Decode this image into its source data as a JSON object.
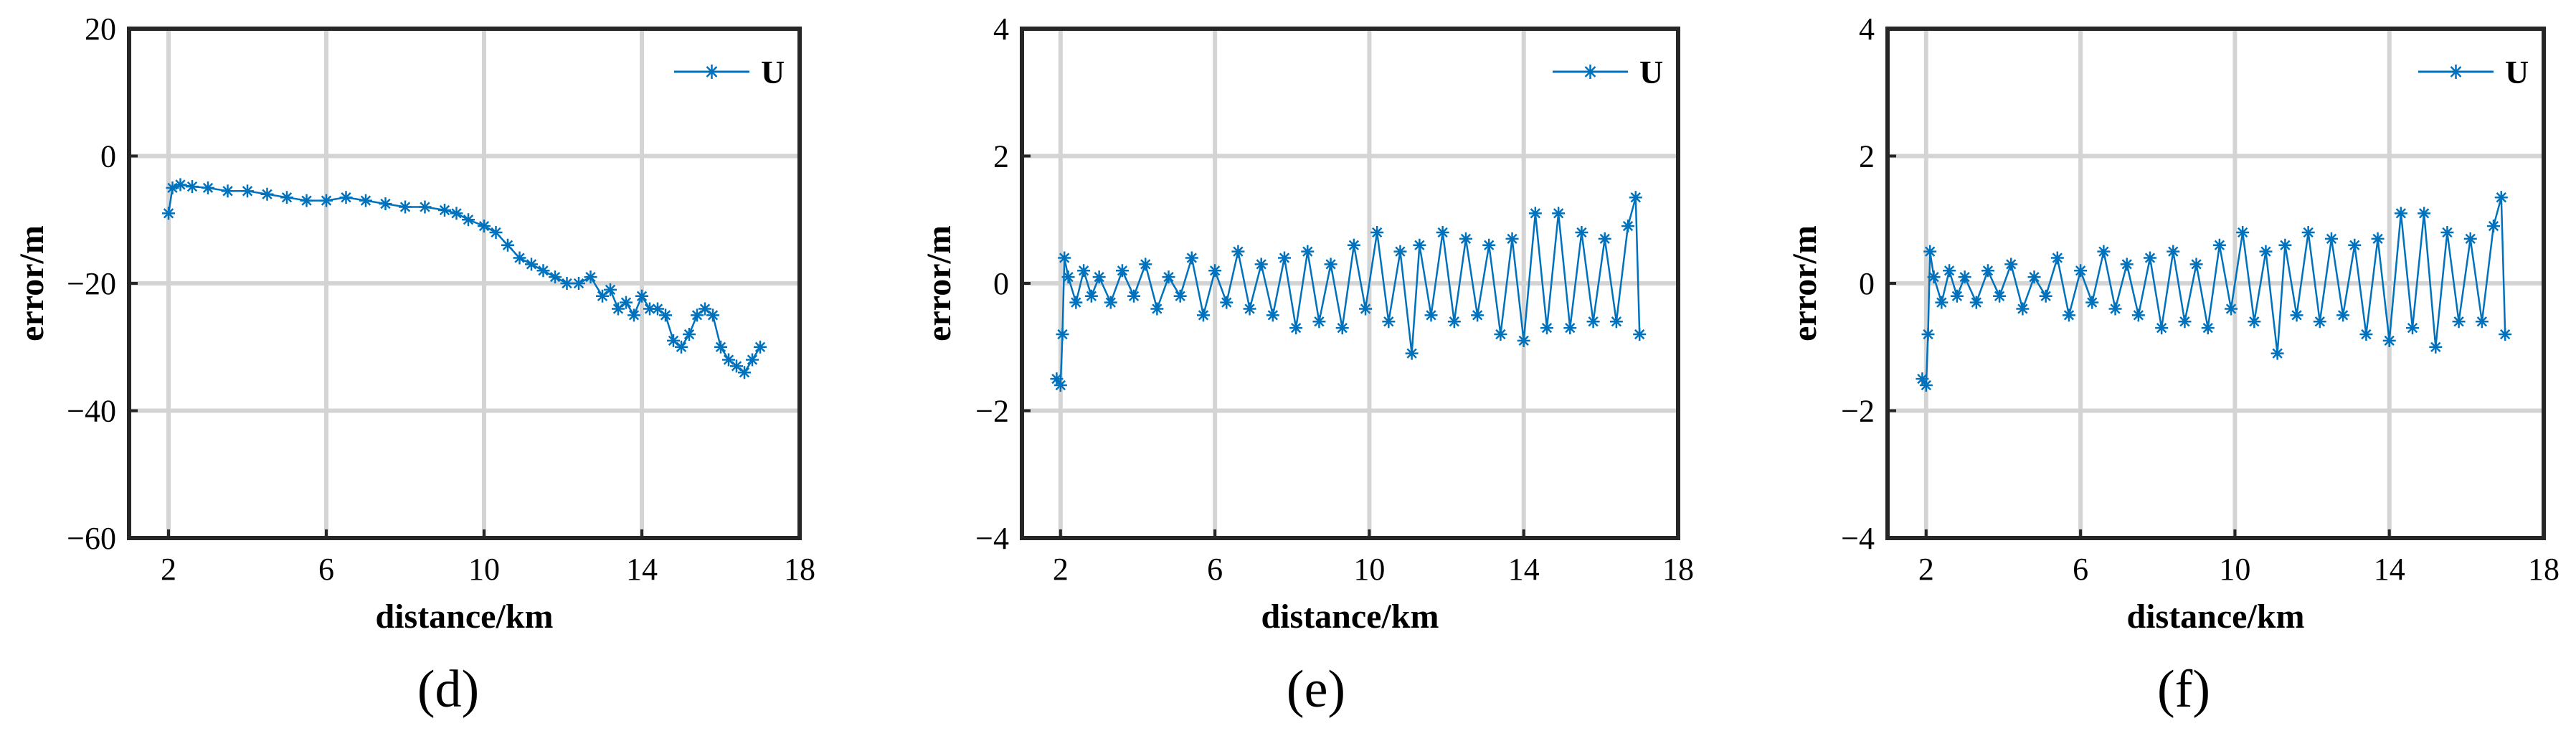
{
  "chart_data": [
    {
      "type": "line",
      "panel_label": "(d)",
      "xlabel": "distance/km",
      "ylabel": "error/m",
      "xlim": [
        1,
        18
      ],
      "ylim": [
        -60,
        20
      ],
      "xticks": [
        2,
        6,
        10,
        14,
        18
      ],
      "yticks": [
        -60,
        -40,
        -20,
        0,
        20
      ],
      "grid": true,
      "legend": "top-right",
      "marker": "asterisk",
      "series": [
        {
          "name": "U",
          "color": "#0072BD",
          "x": [
            2.0,
            2.1,
            2.3,
            2.6,
            3.0,
            3.5,
            4.0,
            4.5,
            5.0,
            5.5,
            6.0,
            6.5,
            7.0,
            7.5,
            8.0,
            8.5,
            9.0,
            9.3,
            9.6,
            10.0,
            10.3,
            10.6,
            10.9,
            11.2,
            11.5,
            11.8,
            12.1,
            12.4,
            12.7,
            13.0,
            13.2,
            13.4,
            13.6,
            13.8,
            14.0,
            14.2,
            14.4,
            14.6,
            14.8,
            15.0,
            15.2,
            15.4,
            15.6,
            15.8,
            16.0,
            16.2,
            16.4,
            16.6,
            16.8,
            17.0
          ],
          "y": [
            -9,
            -5,
            -4.5,
            -4.8,
            -5,
            -5.5,
            -5.5,
            -6,
            -6.5,
            -7,
            -7,
            -6.5,
            -7,
            -7.5,
            -8,
            -8,
            -8.5,
            -9,
            -10,
            -11,
            -12,
            -14,
            -16,
            -17,
            -18,
            -19,
            -20,
            -20,
            -19,
            -22,
            -21,
            -24,
            -23,
            -25,
            -22,
            -24,
            -24,
            -25,
            -29,
            -30,
            -28,
            -25,
            -24,
            -25,
            -30,
            -32,
            -33,
            -34,
            -32,
            -30
          ]
        }
      ]
    },
    {
      "type": "line",
      "panel_label": "(e)",
      "xlabel": "distance/km",
      "ylabel": "error/m",
      "xlim": [
        1,
        18
      ],
      "ylim": [
        -4,
        4
      ],
      "xticks": [
        2,
        6,
        10,
        14,
        18
      ],
      "yticks": [
        -4,
        -2,
        0,
        2,
        4
      ],
      "grid": true,
      "legend": "top-right",
      "marker": "asterisk",
      "series": [
        {
          "name": "U",
          "color": "#0072BD",
          "x": [
            1.9,
            2.0,
            2.05,
            2.1,
            2.2,
            2.4,
            2.6,
            2.8,
            3.0,
            3.3,
            3.6,
            3.9,
            4.2,
            4.5,
            4.8,
            5.1,
            5.4,
            5.7,
            6.0,
            6.3,
            6.6,
            6.9,
            7.2,
            7.5,
            7.8,
            8.1,
            8.4,
            8.7,
            9.0,
            9.3,
            9.6,
            9.9,
            10.2,
            10.5,
            10.8,
            11.1,
            11.3,
            11.6,
            11.9,
            12.2,
            12.5,
            12.8,
            13.1,
            13.4,
            13.7,
            14.0,
            14.3,
            14.6,
            14.9,
            15.2,
            15.5,
            15.8,
            16.1,
            16.4,
            16.7,
            16.9,
            17.0
          ],
          "y": [
            -1.5,
            -1.6,
            -0.8,
            0.4,
            0.1,
            -0.3,
            0.2,
            -0.2,
            0.1,
            -0.3,
            0.2,
            -0.2,
            0.3,
            -0.4,
            0.1,
            -0.2,
            0.4,
            -0.5,
            0.2,
            -0.3,
            0.5,
            -0.4,
            0.3,
            -0.5,
            0.4,
            -0.7,
            0.5,
            -0.6,
            0.3,
            -0.7,
            0.6,
            -0.4,
            0.8,
            -0.6,
            0.5,
            -1.1,
            0.6,
            -0.5,
            0.8,
            -0.6,
            0.7,
            -0.5,
            0.6,
            -0.8,
            0.7,
            -0.9,
            1.1,
            -0.7,
            1.1,
            -0.7,
            0.8,
            -0.6,
            0.7,
            -0.6,
            0.9,
            1.35,
            -0.8
          ]
        }
      ]
    },
    {
      "type": "line",
      "panel_label": "(f)",
      "xlabel": "distance/km",
      "ylabel": "error/m",
      "xlim": [
        1,
        18
      ],
      "ylim": [
        -4,
        4
      ],
      "xticks": [
        2,
        6,
        10,
        14,
        18
      ],
      "yticks": [
        -4,
        -2,
        0,
        2,
        4
      ],
      "grid": true,
      "legend": "top-right",
      "marker": "asterisk",
      "series": [
        {
          "name": "U",
          "color": "#0072BD",
          "x": [
            1.9,
            2.0,
            2.05,
            2.1,
            2.2,
            2.4,
            2.6,
            2.8,
            3.0,
            3.3,
            3.6,
            3.9,
            4.2,
            4.5,
            4.8,
            5.1,
            5.4,
            5.7,
            6.0,
            6.3,
            6.6,
            6.9,
            7.2,
            7.5,
            7.8,
            8.1,
            8.4,
            8.7,
            9.0,
            9.3,
            9.6,
            9.9,
            10.2,
            10.5,
            10.8,
            11.1,
            11.3,
            11.6,
            11.9,
            12.2,
            12.5,
            12.8,
            13.1,
            13.4,
            13.7,
            14.0,
            14.3,
            14.6,
            14.9,
            15.2,
            15.5,
            15.8,
            16.1,
            16.4,
            16.7,
            16.9,
            17.0
          ],
          "y": [
            -1.5,
            -1.6,
            -0.8,
            0.5,
            0.1,
            -0.3,
            0.2,
            -0.2,
            0.1,
            -0.3,
            0.2,
            -0.2,
            0.3,
            -0.4,
            0.1,
            -0.2,
            0.4,
            -0.5,
            0.2,
            -0.3,
            0.5,
            -0.4,
            0.3,
            -0.5,
            0.4,
            -0.7,
            0.5,
            -0.6,
            0.3,
            -0.7,
            0.6,
            -0.4,
            0.8,
            -0.6,
            0.5,
            -1.1,
            0.6,
            -0.5,
            0.8,
            -0.6,
            0.7,
            -0.5,
            0.6,
            -0.8,
            0.7,
            -0.9,
            1.1,
            -0.7,
            1.1,
            -1.0,
            0.8,
            -0.6,
            0.7,
            -0.6,
            0.9,
            1.35,
            -0.8
          ]
        }
      ]
    }
  ]
}
